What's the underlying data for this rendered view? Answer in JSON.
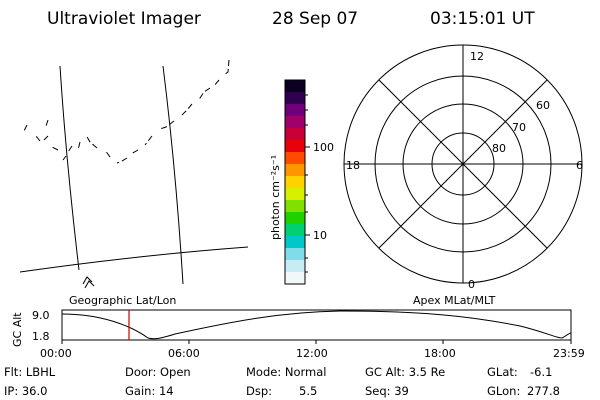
{
  "header": {
    "instrument": "Ultraviolet Imager",
    "date": "28 Sep 07",
    "time": "03:15:01 UT"
  },
  "left_map": {
    "label": "Geographic Lat/Lon"
  },
  "colorbar": {
    "unit_label": "photon cm⁻²s⁻¹",
    "ticks": [
      "100",
      "10"
    ],
    "colors": [
      "#0a0020",
      "#300050",
      "#70007a",
      "#a0006a",
      "#c80038",
      "#e8000a",
      "#ff4a00",
      "#ff9600",
      "#ffd200",
      "#d6f000",
      "#80e000",
      "#20d000",
      "#00d070",
      "#00c8c8",
      "#80dce8",
      "#c8ecf4",
      "#f2f8fa"
    ]
  },
  "polar": {
    "label": "Apex MLat/MLT",
    "mlt_labels": {
      "top": "12",
      "left": "18",
      "right": "6",
      "bottom": "0"
    },
    "lat_labels": [
      "60",
      "70",
      "80"
    ]
  },
  "altitude_plot": {
    "ylabel": "GC Alt",
    "yticks": [
      "9.0",
      "1.8"
    ],
    "xticks": [
      "00:00",
      "06:00",
      "12:00",
      "18:00",
      "23:59"
    ],
    "marker_time": "03:15"
  },
  "info": {
    "row1": {
      "filter": "Flt: LBHL",
      "door": "Door: Open",
      "mode": "Mode: Normal",
      "gc_alt": "GC Alt: 3.5 Re",
      "glat_label": "GLat:",
      "glat_value": "-6.1"
    },
    "row2": {
      "ip": "IP: 36.0",
      "gain": "Gain: 14",
      "dsp_label": "Dsp:",
      "dsp_value": "5.5",
      "seq": "Seq: 39",
      "glon_label": "GLon:",
      "glon_value": "277.8"
    }
  }
}
